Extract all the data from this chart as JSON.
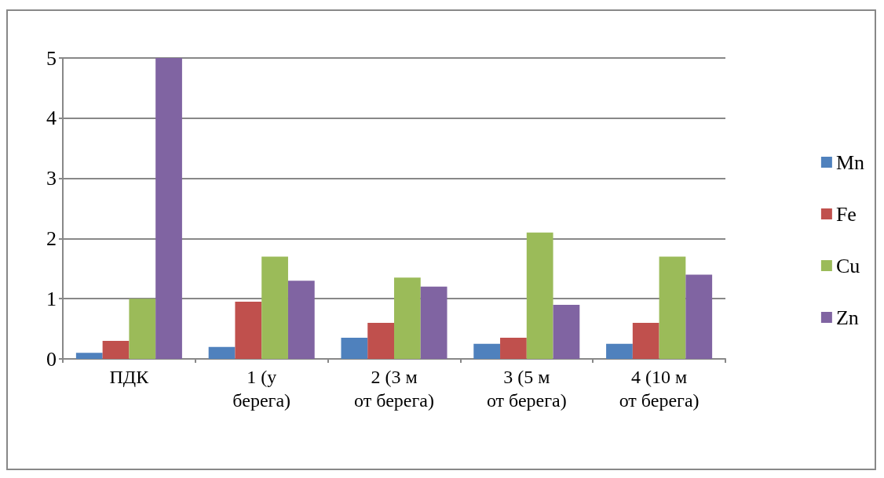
{
  "chart_data": {
    "type": "bar",
    "categories": [
      "ПДК",
      "1 (у берега)",
      "2 (3 м от берега)",
      "3 (5 м от берега)",
      "4 (10 м от берега)"
    ],
    "series": [
      {
        "name": "Mn",
        "color": "#4f81bd",
        "values": [
          0.1,
          0.2,
          0.35,
          0.25,
          0.25
        ]
      },
      {
        "name": "Fe",
        "color": "#c0504d",
        "values": [
          0.3,
          0.95,
          0.6,
          0.35,
          0.6
        ]
      },
      {
        "name": "Cu",
        "color": "#9bbb59",
        "values": [
          1,
          1.7,
          1.35,
          2.1,
          1.7
        ]
      },
      {
        "name": "Zn",
        "color": "#8064a2",
        "values": [
          5,
          1.3,
          1.2,
          0.9,
          1.4
        ]
      }
    ],
    "ylim": [
      0,
      5
    ],
    "yticks": [
      0,
      1,
      2,
      3,
      4,
      5
    ],
    "grid": "y",
    "legend": "right"
  }
}
